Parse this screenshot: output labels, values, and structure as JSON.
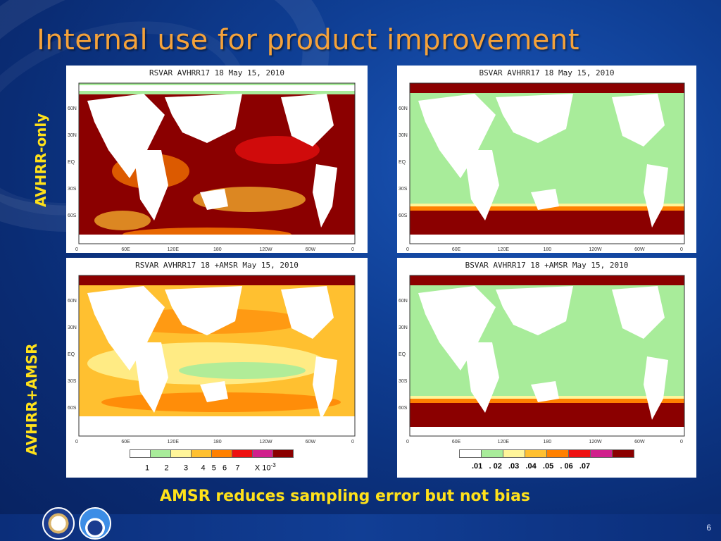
{
  "slide": {
    "title": "Internal use for product improvement",
    "row_labels": {
      "top": "AVHRR-only",
      "bottom": "AVHRR+AMSR"
    },
    "caption": "AMSR reduces sampling error but not bias",
    "page_number": "6"
  },
  "panels": {
    "tl": {
      "title": "RSVAR AVHRR17 18  May 15, 2010"
    },
    "tr": {
      "title": "BSVAR AVHRR17 18  May 15, 2010"
    },
    "bl": {
      "title": "RSVAR AVHRR17 18 +AMSR May 15, 2010"
    },
    "br": {
      "title": "BSVAR AVHRR17 18 +AMSR May 15, 2010"
    }
  },
  "axes": {
    "lat_labels": [
      "60N",
      "30N",
      "EQ",
      "30S",
      "60S"
    ],
    "lon_labels": [
      "0",
      "60E",
      "120E",
      "180",
      "120W",
      "60W",
      "0"
    ]
  },
  "colorbars": {
    "left_ticks": "1       2       3      4   5   6    7       X 10",
    "left_exp": "-3",
    "right_ticks": ".01   . 02   .03   .04   .05   . 06   .07",
    "colors": [
      "#ffffff",
      "#a8ec9a",
      "#fff59a",
      "#ffc030",
      "#ff8000",
      "#ee1010",
      "#d0208c",
      "#8b0000"
    ]
  },
  "icons": {
    "commerce_logo": "commerce-seal-icon",
    "noaa_logo": "noaa-logo-icon"
  }
}
